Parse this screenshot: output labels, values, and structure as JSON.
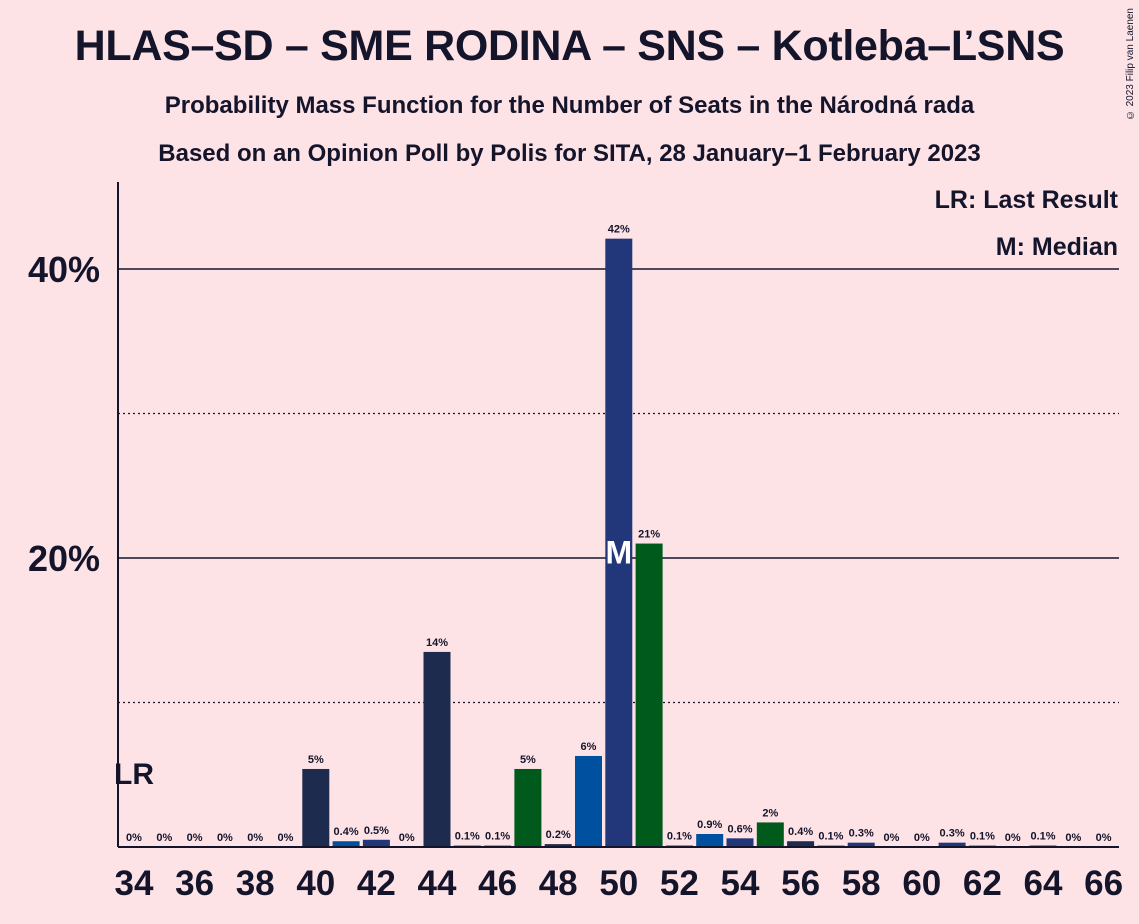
{
  "title": "HLAS–SD – SME RODINA – SNS – Kotleba–ĽSNS",
  "subtitle1": "Probability Mass Function for the Number of Seats in the Národná rada",
  "subtitle2": "Based on an Opinion Poll by Polis for SITA, 28 January–1 February 2023",
  "copyright": "© 2023 Filip van Laenen",
  "legend": {
    "last_result": "LR: Last Result",
    "median": "M: Median"
  },
  "colors": {
    "background": "#fde3e6",
    "hlas": "#1d2b4f",
    "sme_rodina": "#22377a",
    "sns": "#0050a0",
    "kotleba": "#005a1b"
  },
  "chart_data": {
    "type": "bar",
    "xlabel": "",
    "ylabel": "",
    "ylim": [
      0,
      46
    ],
    "y_ticks": [
      20,
      40
    ],
    "y_tick_labels": [
      "20%",
      "40%"
    ],
    "y_dotted_lines": [
      10,
      30
    ],
    "x_tick_labels": [
      "34",
      "36",
      "38",
      "40",
      "42",
      "44",
      "46",
      "48",
      "50",
      "52",
      "54",
      "56",
      "58",
      "60",
      "62",
      "64",
      "66"
    ],
    "last_result_seat": 34,
    "last_result_label": "LR",
    "median_seat": 50,
    "median_label": "M",
    "bars": [
      {
        "seat": 34,
        "value": 0,
        "label": "0%",
        "color": "#1d2b4f"
      },
      {
        "seat": 35,
        "value": 0,
        "label": "0%",
        "color": "#22377a"
      },
      {
        "seat": 36,
        "value": 0,
        "label": "0%",
        "color": "#0050a0"
      },
      {
        "seat": 37,
        "value": 0,
        "label": "0%",
        "color": "#005a1b"
      },
      {
        "seat": 38,
        "value": 0,
        "label": "0%",
        "color": "#1d2b4f"
      },
      {
        "seat": 39,
        "value": 0,
        "label": "0%",
        "color": "#22377a"
      },
      {
        "seat": 40,
        "value": 5.4,
        "label": "5%",
        "color": "#1d2b4f"
      },
      {
        "seat": 41,
        "value": 0.4,
        "label": "0.4%",
        "color": "#0050a0"
      },
      {
        "seat": 42,
        "value": 0.5,
        "label": "0.5%",
        "color": "#22377a"
      },
      {
        "seat": 43,
        "value": 0,
        "label": "0%",
        "color": "#005a1b"
      },
      {
        "seat": 44,
        "value": 13.5,
        "label": "14%",
        "color": "#1d2b4f"
      },
      {
        "seat": 45,
        "value": 0.1,
        "label": "0.1%",
        "color": "#22377a"
      },
      {
        "seat": 46,
        "value": 0.1,
        "label": "0.1%",
        "color": "#0050a0"
      },
      {
        "seat": 47,
        "value": 5.4,
        "label": "5%",
        "color": "#005a1b"
      },
      {
        "seat": 48,
        "value": 0.2,
        "label": "0.2%",
        "color": "#1d2b4f"
      },
      {
        "seat": 49,
        "value": 6.3,
        "label": "6%",
        "color": "#0050a0"
      },
      {
        "seat": 50,
        "value": 42.1,
        "label": "42%",
        "color": "#22377a"
      },
      {
        "seat": 51,
        "value": 21,
        "label": "21%",
        "color": "#005a1b"
      },
      {
        "seat": 52,
        "value": 0.1,
        "label": "0.1%",
        "color": "#1d2b4f"
      },
      {
        "seat": 53,
        "value": 0.9,
        "label": "0.9%",
        "color": "#0050a0"
      },
      {
        "seat": 54,
        "value": 0.6,
        "label": "0.6%",
        "color": "#22377a"
      },
      {
        "seat": 55,
        "value": 1.7,
        "label": "2%",
        "color": "#005a1b"
      },
      {
        "seat": 56,
        "value": 0.4,
        "label": "0.4%",
        "color": "#1d2b4f"
      },
      {
        "seat": 57,
        "value": 0.1,
        "label": "0.1%",
        "color": "#0050a0"
      },
      {
        "seat": 58,
        "value": 0.3,
        "label": "0.3%",
        "color": "#22377a"
      },
      {
        "seat": 59,
        "value": 0,
        "label": "0%",
        "color": "#005a1b"
      },
      {
        "seat": 60,
        "value": 0,
        "label": "0%",
        "color": "#1d2b4f"
      },
      {
        "seat": 61,
        "value": 0.3,
        "label": "0.3%",
        "color": "#22377a"
      },
      {
        "seat": 62,
        "value": 0.1,
        "label": "0.1%",
        "color": "#0050a0"
      },
      {
        "seat": 63,
        "value": 0,
        "label": "0%",
        "color": "#005a1b"
      },
      {
        "seat": 64,
        "value": 0.1,
        "label": "0.1%",
        "color": "#1d2b4f"
      },
      {
        "seat": 65,
        "value": 0,
        "label": "0%",
        "color": "#22377a"
      },
      {
        "seat": 66,
        "value": 0,
        "label": "0%",
        "color": "#005a1b"
      }
    ]
  }
}
